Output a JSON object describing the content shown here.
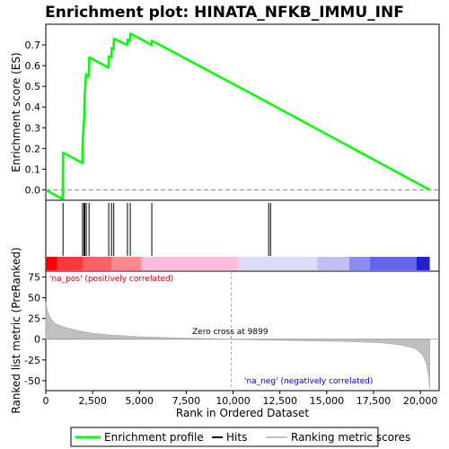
{
  "chart_data": {
    "type": "line",
    "title": "Enrichment plot: HINATA_NFKB_IMMU_INF",
    "xlabel": "Rank in Ordered Dataset",
    "xlim": [
      0,
      21000
    ],
    "x_ticks": [
      "0",
      "2,500",
      "5,000",
      "7,500",
      "10,000",
      "12,500",
      "15,000",
      "17,500",
      "20,000"
    ],
    "x_tick_values": [
      0,
      2500,
      5000,
      7500,
      10000,
      12500,
      15000,
      17500,
      20000
    ],
    "top_panel": {
      "ylabel": "Enrichment score (ES)",
      "ylim": [
        -0.05,
        0.8
      ],
      "y_ticks": [
        "0.0",
        "0.1",
        "0.2",
        "0.3",
        "0.4",
        "0.5",
        "0.6",
        "0.7"
      ],
      "y_tick_values": [
        0.0,
        0.1,
        0.2,
        0.3,
        0.4,
        0.5,
        0.6,
        0.7
      ],
      "series_name": "Enrichment profile",
      "color": "#00ff00",
      "x": [
        0,
        900,
        920,
        1950,
        1970,
        2050,
        2070,
        2150,
        2170,
        2300,
        2320,
        3350,
        3370,
        3500,
        3520,
        3620,
        3640,
        4350,
        4370,
        4500,
        4520,
        5650,
        5670,
        11900,
        12000,
        20500
      ],
      "y": [
        0.0,
        -0.045,
        0.18,
        0.13,
        0.24,
        0.35,
        0.45,
        0.56,
        0.545,
        0.55,
        0.64,
        0.59,
        0.645,
        0.64,
        0.685,
        0.68,
        0.73,
        0.7,
        0.725,
        0.72,
        0.755,
        0.7,
        0.72,
        0.42,
        0.415,
        0.0
      ]
    },
    "hits": {
      "name": "Hits",
      "positions": [
        920,
        1960,
        2040,
        2080,
        2160,
        2310,
        3360,
        3510,
        3630,
        4360,
        4510,
        5660,
        11900,
        12000
      ]
    },
    "color_bar": {
      "segments": [
        {
          "from": 0,
          "to": 600,
          "color": "#ff0000"
        },
        {
          "from": 600,
          "to": 2000,
          "color": "#ff3838"
        },
        {
          "from": 2000,
          "to": 3500,
          "color": "#ff6262"
        },
        {
          "from": 3500,
          "to": 5100,
          "color": "#ff8c8c"
        },
        {
          "from": 5100,
          "to": 10300,
          "color": "#ffbcdc"
        },
        {
          "from": 10300,
          "to": 14500,
          "color": "#dcdcf8"
        },
        {
          "from": 14500,
          "to": 16200,
          "color": "#c0c0f4"
        },
        {
          "from": 16200,
          "to": 17300,
          "color": "#8c8cf0"
        },
        {
          "from": 17300,
          "to": 19800,
          "color": "#6464e8"
        },
        {
          "from": 19800,
          "to": 20500,
          "color": "#2222cc"
        }
      ],
      "pos_label": "'na_pos' (positively correlated)",
      "neg_label": "'na_neg' (negatively correlated)"
    },
    "bottom_panel": {
      "ylabel": "Ranked list metric (PreRanked)",
      "ylim": [
        -62,
        82
      ],
      "y_ticks": [
        "75",
        "50",
        "25",
        "0",
        "-25",
        "-50"
      ],
      "y_tick_values": [
        75,
        50,
        25,
        0,
        -25,
        -50
      ],
      "series_name": "Ranking metric scores",
      "x": [
        0,
        100,
        250,
        500,
        800,
        1200,
        1800,
        2500,
        3500,
        5000,
        7000,
        9899,
        12000,
        14500,
        16500,
        18000,
        19000,
        19700,
        20100,
        20300,
        20450,
        20500
      ],
      "y": [
        45,
        33,
        25,
        19,
        16,
        13,
        10,
        7,
        5,
        3,
        1.5,
        0,
        -1,
        -2,
        -3,
        -4.5,
        -7,
        -11,
        -18,
        -28,
        -45,
        -60
      ],
      "zero_cross_label": "Zero cross at 9899",
      "zero_cross": 9899
    },
    "legend": [
      "Enrichment profile",
      "Hits",
      "Ranking metric scores"
    ],
    "grid": false
  }
}
